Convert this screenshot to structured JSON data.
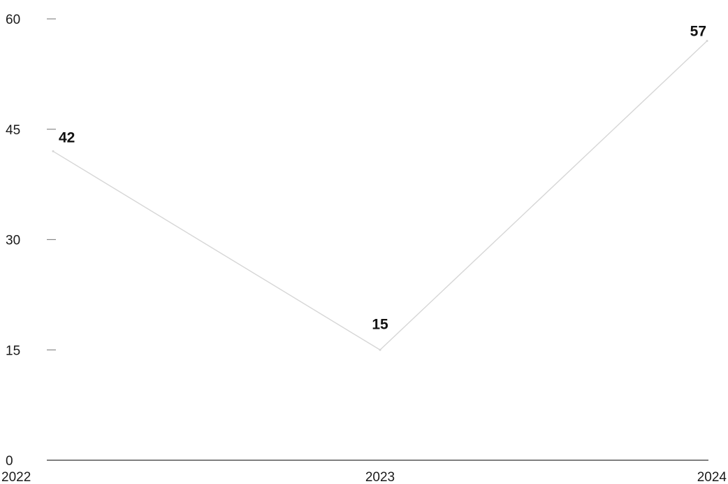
{
  "chart_data": {
    "type": "line",
    "title": "",
    "xlabel": "",
    "ylabel": "",
    "categories": [
      "2022",
      "2023",
      "2024"
    ],
    "series": [
      {
        "values": [
          42,
          15,
          57
        ]
      }
    ],
    "data_labels": [
      "42",
      "15",
      "57"
    ],
    "yticks": [
      0,
      15,
      30,
      45,
      60
    ],
    "ytick_labels": [
      "0",
      "15",
      "30",
      "45",
      "60"
    ],
    "ylim": [
      0,
      60
    ],
    "grid": false,
    "legend": "none",
    "colors": {
      "line": "#d6d6d6",
      "axis": "#555555",
      "tick": "#888888",
      "text": "#1a1a1a"
    }
  }
}
